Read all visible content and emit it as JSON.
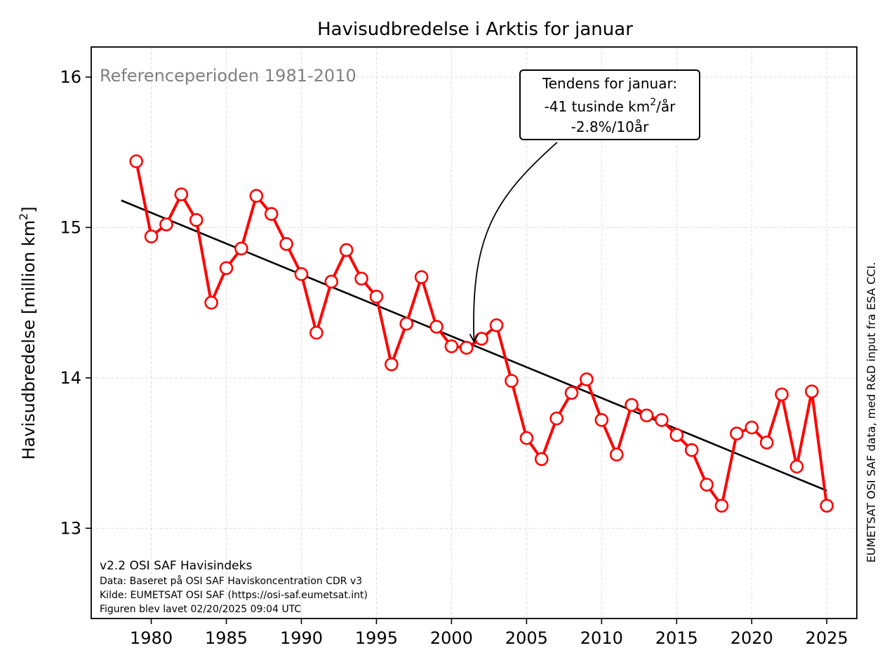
{
  "chart_data": {
    "type": "line",
    "title": "Havisudbredelse i Arktis for januar",
    "ylabel": "Havisudbredelse [million km",
    "ylabel_sup": "2",
    "ylabel_close": "]",
    "xlim": [
      1976,
      2027
    ],
    "ylim": [
      12.4,
      16.2
    ],
    "xticks": [
      1980,
      1985,
      1990,
      1995,
      2000,
      2005,
      2010,
      2015,
      2020,
      2025
    ],
    "yticks": [
      13,
      14,
      15,
      16
    ],
    "grid": true,
    "series": [
      {
        "x": [
          1979,
          1980,
          1981,
          1982,
          1983,
          1984,
          1985,
          1986,
          1987,
          1988,
          1989,
          1990,
          1991,
          1992,
          1993,
          1994,
          1995,
          1996,
          1997,
          1998,
          1999,
          2000,
          2001,
          2002,
          2003,
          2004,
          2005,
          2006,
          2007,
          2008,
          2009,
          2010,
          2011,
          2012,
          2013,
          2014,
          2015,
          2016,
          2017,
          2018,
          2019,
          2020,
          2021,
          2022,
          2023,
          2024,
          2025
        ],
        "values": [
          15.44,
          14.94,
          15.02,
          15.22,
          15.05,
          14.5,
          14.73,
          14.86,
          15.21,
          15.09,
          14.89,
          14.69,
          14.3,
          14.64,
          14.85,
          14.66,
          14.54,
          14.09,
          14.36,
          14.67,
          14.34,
          14.21,
          14.2,
          14.26,
          14.35,
          13.98,
          13.6,
          13.46,
          13.73,
          13.9,
          13.99,
          13.72,
          13.49,
          13.82,
          13.75,
          13.72,
          13.62,
          13.52,
          13.29,
          13.15,
          13.63,
          13.67,
          13.57,
          13.89,
          13.41,
          13.91,
          13.15
        ],
        "color": "#ff0000"
      }
    ],
    "trend": {
      "x": [
        1978,
        2025
      ],
      "values": [
        15.18,
        13.25
      ],
      "color": "#000000"
    },
    "annotations": {
      "reference": "Referenceperioden 1981-2010",
      "trend_box_line1": "Tendens for januar:",
      "trend_box_line2a": "-41 tusinde km",
      "trend_box_line2_sup": "2",
      "trend_box_line2b": "/år",
      "trend_box_line3": "-2.8%/10år",
      "arrow_target": {
        "x": 2001.5,
        "y": 14.24
      },
      "credit_title": "v2.2 OSI SAF Havisindeks",
      "credit_line1": "Data: Baseret på OSI SAF Haviskoncentration CDR v3",
      "credit_line2": "Kilde: EUMETSAT OSI SAF (https://osi-saf.eumetsat.int)",
      "credit_line3": "Figuren blev lavet 02/20/2025 09:04 UTC",
      "side_note": "EUMETSAT OSI SAF data, med R&D input fra ESA CCI."
    }
  }
}
